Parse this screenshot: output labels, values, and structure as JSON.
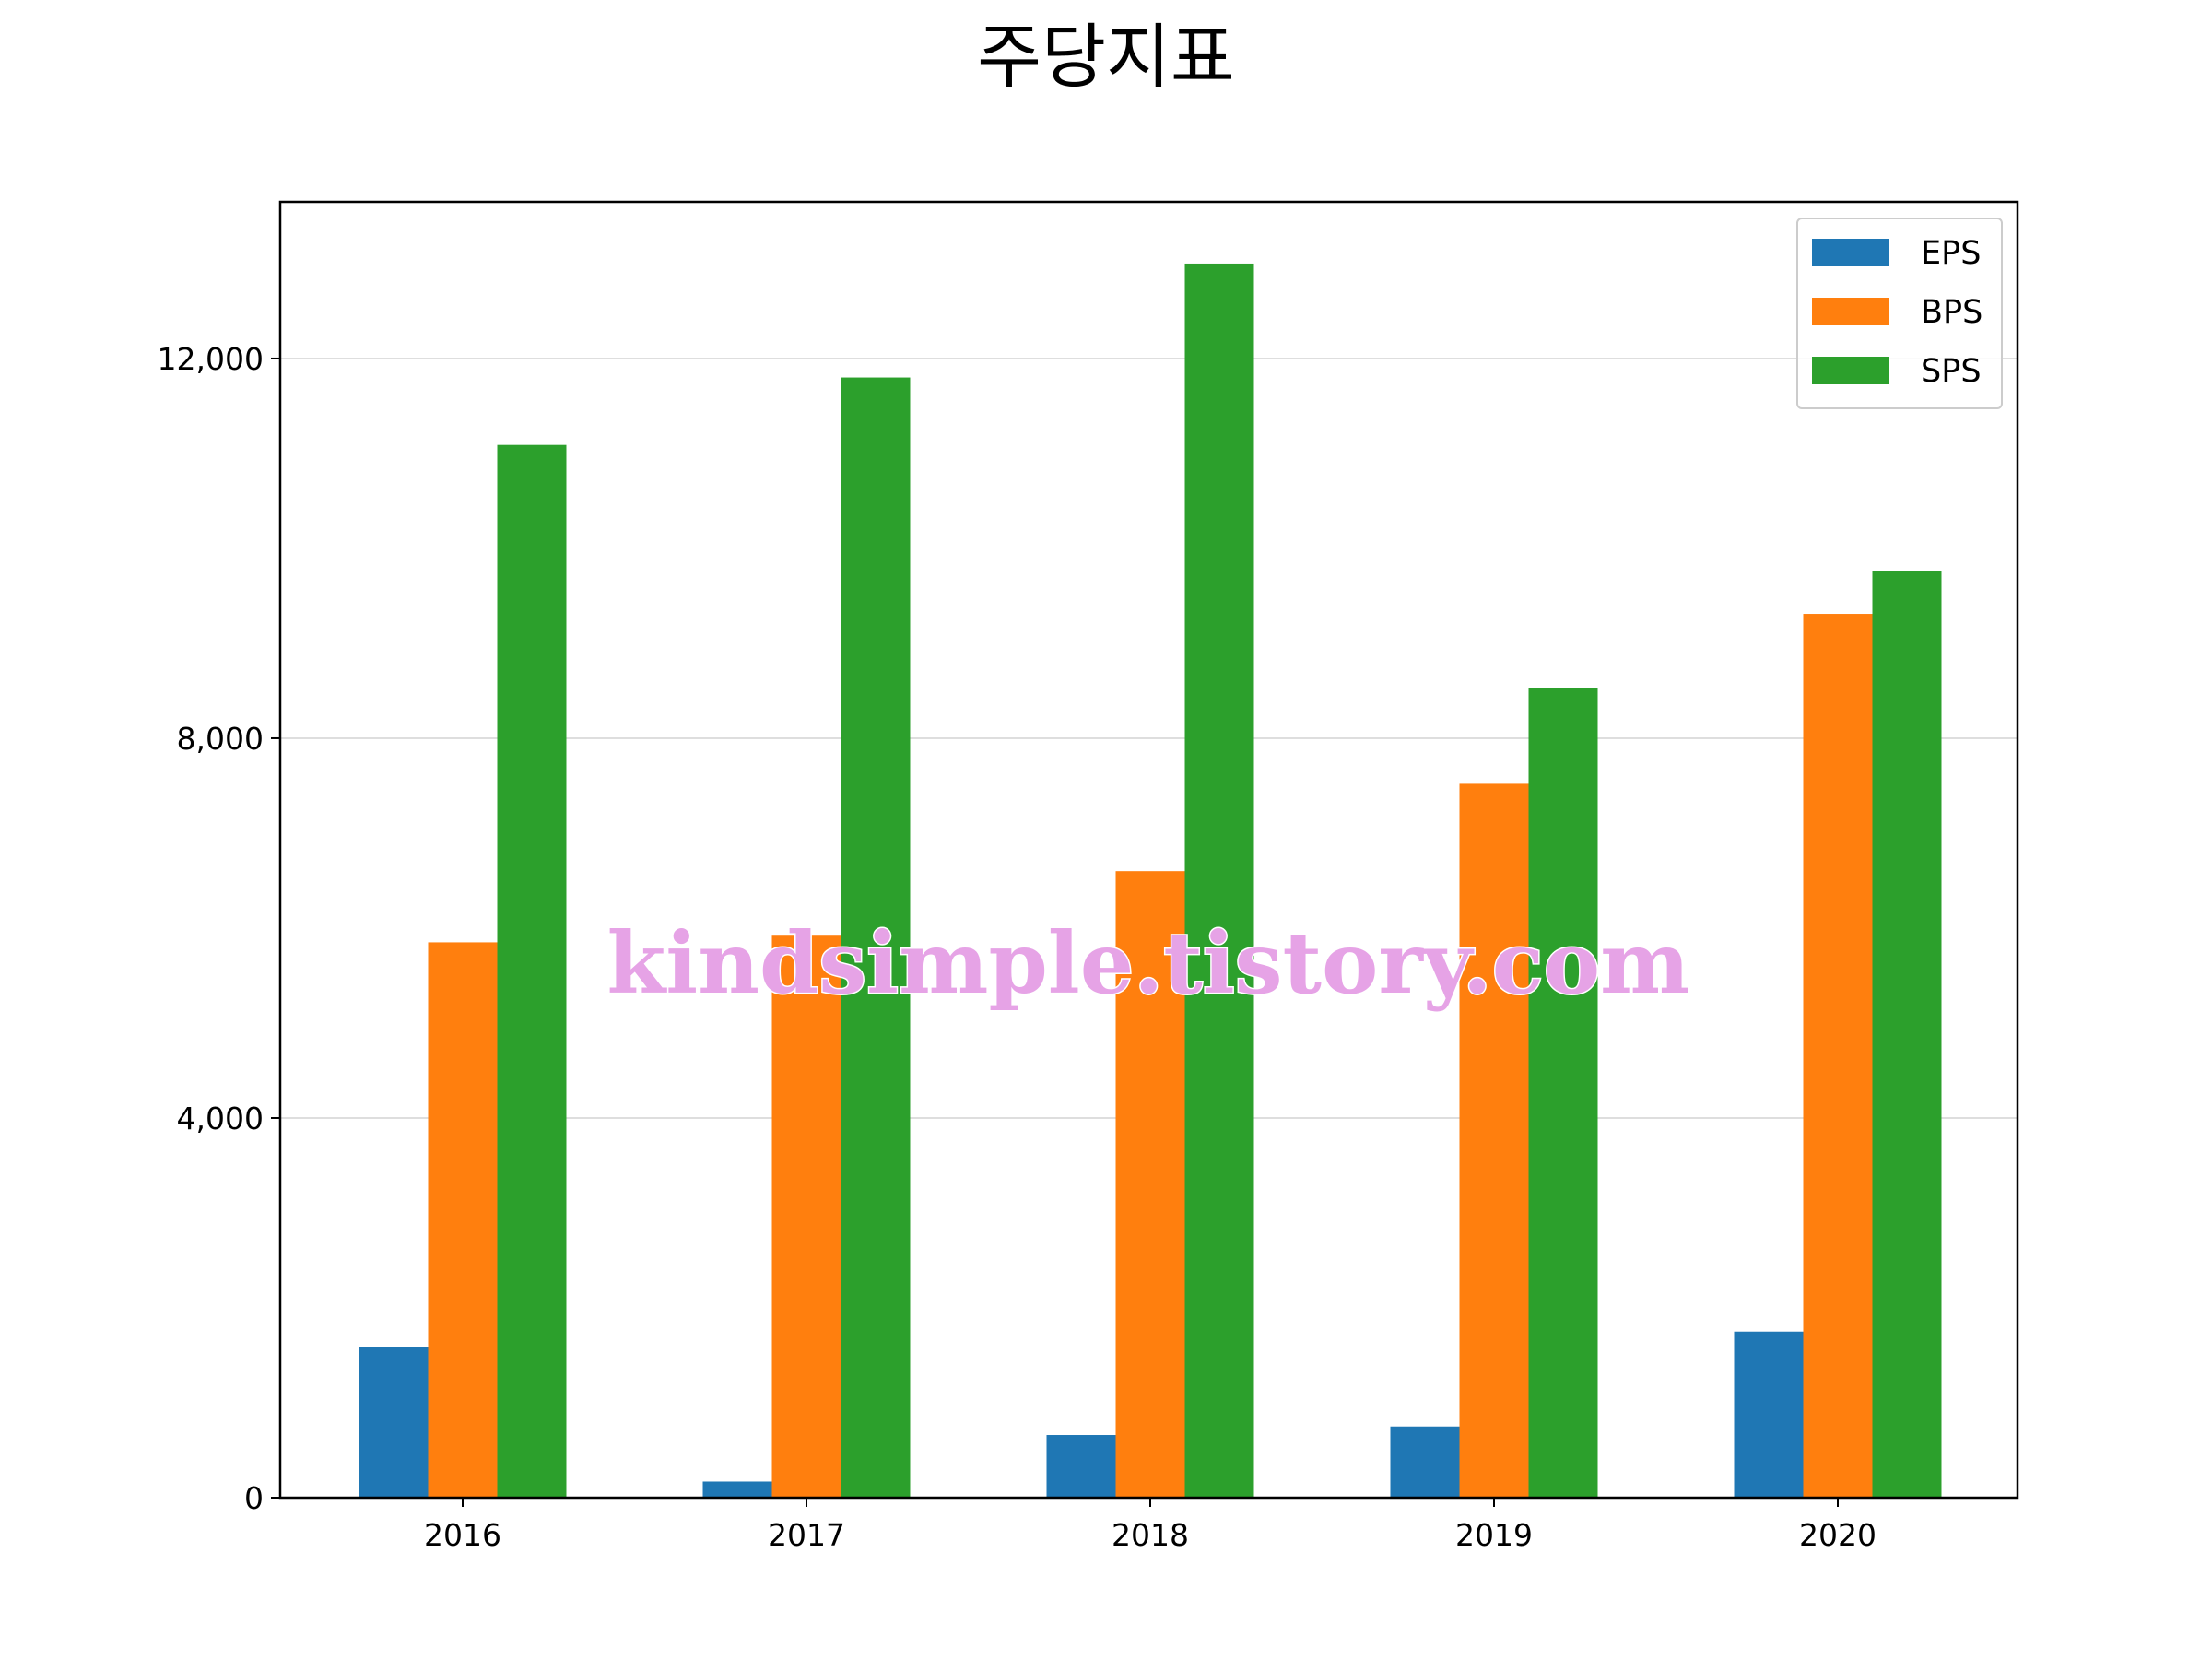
{
  "chart_data": {
    "type": "bar",
    "title": "주당지표",
    "xlabel": "",
    "ylabel": "",
    "categories": [
      "2016",
      "2017",
      "2018",
      "2019",
      "2020"
    ],
    "series": [
      {
        "name": "EPS",
        "color": "#1f77b4",
        "values": [
          1590,
          170,
          660,
          750,
          1750
        ]
      },
      {
        "name": "BPS",
        "color": "#ff7f0e",
        "values": [
          5850,
          5920,
          6600,
          7520,
          9310
        ]
      },
      {
        "name": "SPS",
        "color": "#2ca02c",
        "values": [
          11090,
          11800,
          13000,
          8530,
          9760
        ]
      }
    ],
    "ylim": [
      0,
      13650
    ],
    "yticks": [
      0,
      4000,
      8000,
      12000
    ],
    "ytick_labels": [
      "0",
      "4,000",
      "8,000",
      "12,000"
    ],
    "grid": "y",
    "legend_position": "top-right",
    "watermark": "kindsimple.tistory.com"
  }
}
